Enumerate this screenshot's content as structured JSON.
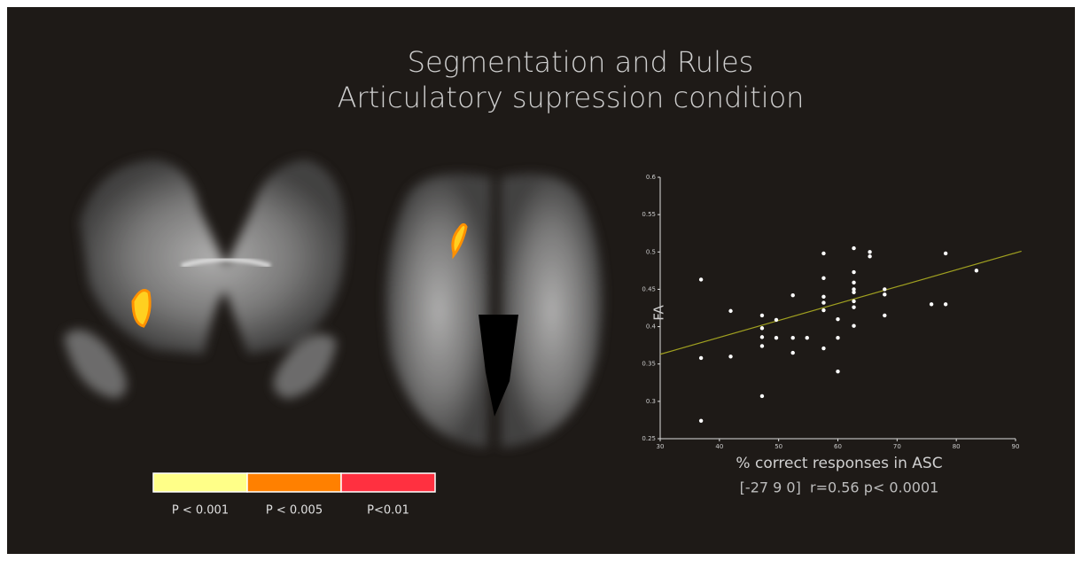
{
  "chart_data": {
    "type": "scatter",
    "title": "Segmentation and Rules",
    "subtitle": "Articulatory supression condition",
    "x_label": "% correct responses in ASC",
    "y_label": "FA",
    "annotation": "[-27 9 0]  r=0.56 p< 0.0001",
    "x": [
      36.9,
      36.9,
      36.9,
      41.9,
      41.9,
      47.2,
      47.2,
      47.2,
      47.2,
      47.2,
      49.6,
      49.6,
      52.4,
      52.4,
      52.4,
      54.8,
      57.6,
      57.6,
      57.6,
      57.6,
      57.6,
      57.6,
      60.0,
      60.0,
      60.0,
      62.7,
      62.7,
      62.7,
      62.7,
      62.7,
      62.7,
      62.7,
      62.7,
      65.4,
      65.4,
      67.9,
      67.9,
      67.9,
      75.8,
      78.2,
      78.2,
      83.4
    ],
    "values": [
      0.463,
      0.358,
      0.274,
      0.421,
      0.36,
      0.415,
      0.398,
      0.386,
      0.374,
      0.307,
      0.409,
      0.385,
      0.442,
      0.385,
      0.365,
      0.385,
      0.465,
      0.44,
      0.432,
      0.422,
      0.371,
      0.498,
      0.41,
      0.385,
      0.34,
      0.505,
      0.473,
      0.459,
      0.45,
      0.446,
      0.434,
      0.426,
      0.401,
      0.5,
      0.494,
      0.45,
      0.443,
      0.415,
      0.43,
      0.498,
      0.43,
      0.475
    ],
    "color": "#ffffff",
    "fit_line": {
      "x": [
        30,
        91
      ],
      "y": [
        0.363,
        0.501
      ],
      "color": "#a0a020"
    },
    "xlim": [
      30,
      90
    ],
    "ylim": [
      0.25,
      0.6
    ],
    "xticks": [
      30,
      40,
      50,
      60,
      70,
      80,
      90
    ],
    "yticks": [
      0.25,
      0.3,
      0.35,
      0.4,
      0.45,
      0.5,
      0.55,
      0.6
    ],
    "grid": false
  },
  "colorbar": {
    "labels": [
      "P < 0.001",
      "P < 0.005",
      "P<0.01"
    ],
    "colors": [
      "#ffff88",
      "#ff8000",
      "#ff3040"
    ]
  }
}
